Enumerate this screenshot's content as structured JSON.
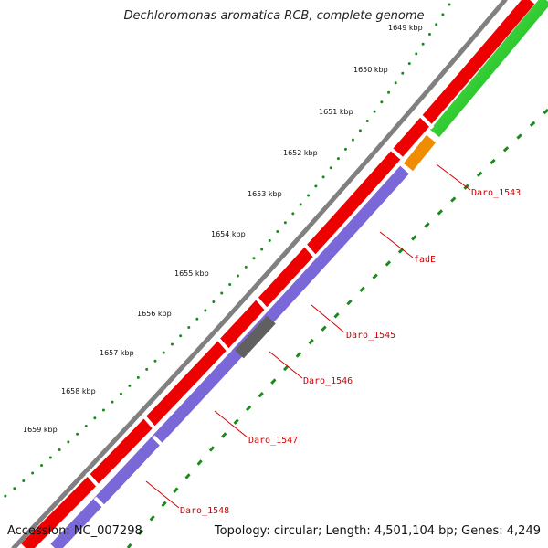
{
  "title": "Dechloromonas aromatica RCB, complete genome",
  "footer": {
    "accession": "Accession: NC_007298",
    "summary": "Topology: circular; Length: 4,501,104 bp; Genes: 4,249"
  },
  "ticks": [
    "1649 kbp",
    "1650 kbp",
    "1651 kbp",
    "1652 kbp",
    "1653 kbp",
    "1654 kbp",
    "1655 kbp",
    "1656 kbp",
    "1657 kbp",
    "1658 kbp",
    "1659 kbp"
  ],
  "genes": [
    "Daro_1543",
    "fadE",
    "Daro_1545",
    "Daro_1546",
    "Daro_1547",
    "Daro_1548"
  ],
  "colors": {
    "backbone": "#808080",
    "cds_forward": "#ee0000",
    "cds_reverse": "#7b68d8",
    "orange_feature": "#f08c00",
    "green_feature": "#33cc33",
    "gray_feature": "#606060",
    "tick_dots": "#1a8a1a",
    "label": "#d40000"
  }
}
